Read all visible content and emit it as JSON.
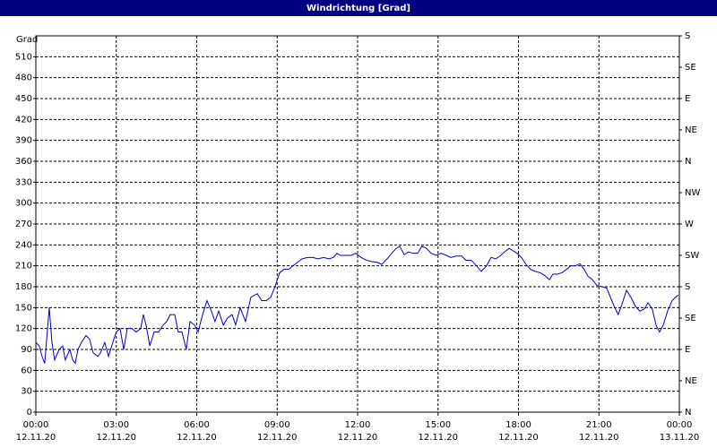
{
  "chart_data": {
    "type": "line",
    "title": "Windrichtung [Grad]",
    "y_label": "Grad",
    "xlim": [
      0,
      24
    ],
    "xticks": [
      {
        "value": 0,
        "label": "00:00",
        "date": "12.11.20"
      },
      {
        "value": 3,
        "label": "03:00",
        "date": "12.11.20"
      },
      {
        "value": 6,
        "label": "06:00",
        "date": "12.11.20"
      },
      {
        "value": 9,
        "label": "09:00",
        "date": "12.11.20"
      },
      {
        "value": 12,
        "label": "12:00",
        "date": "12.11.20"
      },
      {
        "value": 15,
        "label": "15:00",
        "date": "12.11.20"
      },
      {
        "value": 18,
        "label": "18:00",
        "date": "12.11.20"
      },
      {
        "value": 21,
        "label": "21:00",
        "date": "12.11.20"
      },
      {
        "value": 24,
        "label": "00:00",
        "date": "13.11.20"
      }
    ],
    "ylim": [
      0,
      540
    ],
    "yticks": [
      0,
      30,
      60,
      90,
      120,
      150,
      180,
      210,
      240,
      270,
      300,
      330,
      360,
      390,
      420,
      450,
      480,
      510
    ],
    "y2lim": [
      0,
      540
    ],
    "y2ticks": [
      {
        "value": 0,
        "label": "N"
      },
      {
        "value": 45,
        "label": "NE"
      },
      {
        "value": 90,
        "label": "E"
      },
      {
        "value": 135,
        "label": "SE"
      },
      {
        "value": 180,
        "label": "S"
      },
      {
        "value": 225,
        "label": "SW"
      },
      {
        "value": 270,
        "label": "W"
      },
      {
        "value": 315,
        "label": "NW"
      },
      {
        "value": 360,
        "label": "N"
      },
      {
        "value": 405,
        "label": "NE"
      },
      {
        "value": 450,
        "label": "E"
      },
      {
        "value": 495,
        "label": "SE"
      },
      {
        "value": 540,
        "label": "S"
      }
    ],
    "grid": true,
    "x": [
      0,
      0.13,
      0.23,
      0.33,
      0.5,
      0.6,
      0.7,
      0.87,
      1.0,
      1.1,
      1.27,
      1.37,
      1.47,
      1.57,
      1.7,
      1.87,
      2.0,
      2.14,
      2.31,
      2.41,
      2.57,
      2.71,
      2.87,
      3.0,
      3.14,
      3.28,
      3.41,
      3.58,
      3.74,
      3.91,
      4.01,
      4.11,
      4.25,
      4.41,
      4.58,
      4.75,
      4.88,
      5.01,
      5.18,
      5.31,
      5.45,
      5.61,
      5.75,
      5.92,
      6.05,
      6.22,
      6.38,
      6.55,
      6.68,
      6.82,
      6.99,
      7.15,
      7.32,
      7.45,
      7.62,
      7.82,
      8.02,
      8.26,
      8.42,
      8.59,
      8.76,
      8.92,
      9.09,
      9.26,
      9.43,
      9.59,
      9.76,
      9.93,
      10.13,
      10.33,
      10.53,
      10.73,
      10.93,
      11.1,
      11.23,
      11.36,
      11.56,
      11.76,
      11.93,
      12.13,
      12.33,
      12.53,
      12.73,
      12.9,
      13.1,
      13.27,
      13.44,
      13.57,
      13.74,
      13.9,
      14.07,
      14.24,
      14.4,
      14.57,
      14.74,
      14.94,
      15.11,
      15.31,
      15.47,
      15.68,
      15.88,
      16.04,
      16.24,
      16.44,
      16.61,
      16.81,
      16.98,
      17.15,
      17.31,
      17.48,
      17.65,
      17.78,
      17.95,
      18.11,
      18.28,
      18.45,
      18.62,
      18.82,
      18.98,
      19.15,
      19.28,
      19.45,
      19.62,
      19.79,
      19.95,
      20.12,
      20.29,
      20.45,
      20.59,
      20.76,
      20.92,
      21.12,
      21.29,
      21.46,
      21.59,
      21.72,
      21.86,
      22.03,
      22.19,
      22.36,
      22.53,
      22.69,
      22.83,
      22.99,
      23.13,
      23.26,
      23.4,
      23.56,
      23.73,
      23.86,
      23.96
    ],
    "series": [
      {
        "name": "Windrichtung",
        "color": "#0000cc",
        "values": [
          100,
          95,
          80,
          70,
          150,
          100,
          75,
          90,
          95,
          75,
          90,
          75,
          70,
          90,
          100,
          110,
          105,
          85,
          80,
          85,
          100,
          80,
          100,
          115,
          120,
          90,
          120,
          120,
          115,
          120,
          140,
          125,
          95,
          115,
          115,
          125,
          130,
          140,
          140,
          115,
          115,
          90,
          130,
          125,
          115,
          140,
          160,
          145,
          130,
          145,
          125,
          135,
          140,
          125,
          150,
          130,
          165,
          170,
          160,
          160,
          165,
          180,
          200,
          205,
          205,
          210,
          215,
          220,
          222,
          222,
          220,
          222,
          220,
          222,
          228,
          225,
          225,
          225,
          228,
          222,
          218,
          216,
          215,
          212,
          220,
          228,
          235,
          238,
          226,
          230,
          228,
          228,
          238,
          235,
          228,
          225,
          228,
          225,
          222,
          224,
          224,
          218,
          218,
          210,
          202,
          210,
          222,
          220,
          224,
          230,
          235,
          232,
          228,
          222,
          212,
          205,
          202,
          200,
          196,
          190,
          198,
          198,
          200,
          205,
          210,
          210,
          213,
          205,
          195,
          190,
          182,
          180,
          178,
          162,
          150,
          140,
          155,
          175,
          165,
          152,
          145,
          148,
          157,
          148,
          125,
          115,
          125,
          145,
          160,
          165,
          168
        ]
      }
    ]
  }
}
